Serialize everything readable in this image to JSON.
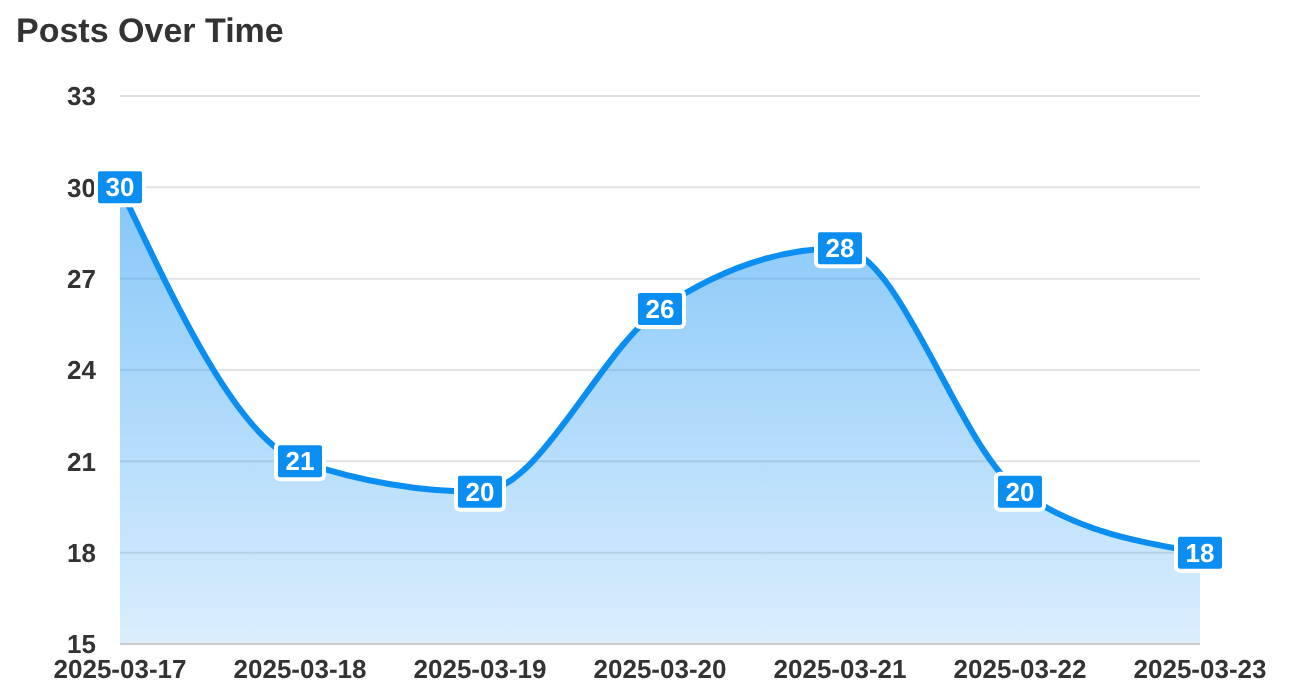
{
  "chart_data": {
    "type": "area",
    "title": "Posts Over Time",
    "categories": [
      "2025-03-17",
      "2025-03-18",
      "2025-03-19",
      "2025-03-20",
      "2025-03-21",
      "2025-03-22",
      "2025-03-23"
    ],
    "series": [
      {
        "color": "#0b8ef2",
        "values": [
          30,
          21,
          20,
          26,
          28,
          20,
          18
        ]
      }
    ],
    "ylim": [
      15,
      33
    ],
    "yticks": [
      15,
      18,
      21,
      24,
      27,
      30,
      33
    ],
    "grid": "y",
    "data_labels": true,
    "legend": false
  }
}
